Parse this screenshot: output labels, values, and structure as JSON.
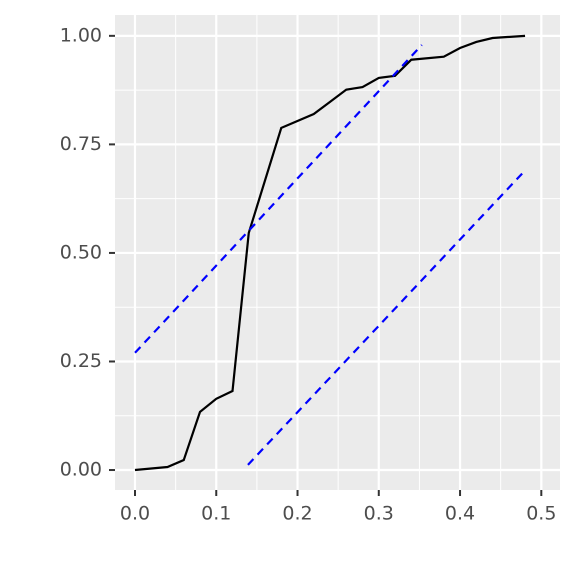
{
  "chart_data": {
    "type": "line",
    "series": [
      {
        "color": "#000000",
        "linestyle": "solid",
        "x": [
          0,
          0.04,
          0.06,
          0.08,
          0.1,
          0.12,
          0.14,
          0.18,
          0.22,
          0.24,
          0.26,
          0.28,
          0.3,
          0.32,
          0.34,
          0.38,
          0.4,
          0.42,
          0.44,
          0.48
        ],
        "values": [
          0,
          0.007,
          0.023,
          0.134,
          0.164,
          0.182,
          0.546,
          0.788,
          0.82,
          0.848,
          0.876,
          0.882,
          0.903,
          0.908,
          0.945,
          0.952,
          0.972,
          0.986,
          0.995,
          1.0
        ]
      },
      {
        "color": "#0000ff",
        "linestyle": "dashed",
        "x": [
          0,
          0.353
        ],
        "values": [
          0.27,
          0.979
        ]
      },
      {
        "color": "#0000ff",
        "linestyle": "dashed",
        "x": [
          0.139,
          0.477
        ],
        "values": [
          0.012,
          0.684
        ]
      }
    ],
    "xlim": [
      -0.0246,
      0.523
    ],
    "ylim": [
      -0.046,
      1.048
    ],
    "xticks": [
      {
        "value": 0,
        "label": "0.0"
      },
      {
        "value": 0.1,
        "label": "0.1"
      },
      {
        "value": 0.2,
        "label": "0.2"
      },
      {
        "value": 0.3,
        "label": "0.3"
      },
      {
        "value": 0.4,
        "label": "0.4"
      },
      {
        "value": 0.5,
        "label": "0.5"
      }
    ],
    "yticks": [
      {
        "value": 0,
        "label": "0.00"
      },
      {
        "value": 0.25,
        "label": "0.25"
      },
      {
        "value": 0.5,
        "label": "0.50"
      },
      {
        "value": 0.75,
        "label": "0.75"
      },
      {
        "value": 1,
        "label": "1.00"
      }
    ],
    "x_minor_ticks": [
      0.05,
      0.15,
      0.25,
      0.35,
      0.45
    ],
    "y_minor_ticks": [
      0.125,
      0.375,
      0.625,
      0.875
    ],
    "grid": true
  }
}
